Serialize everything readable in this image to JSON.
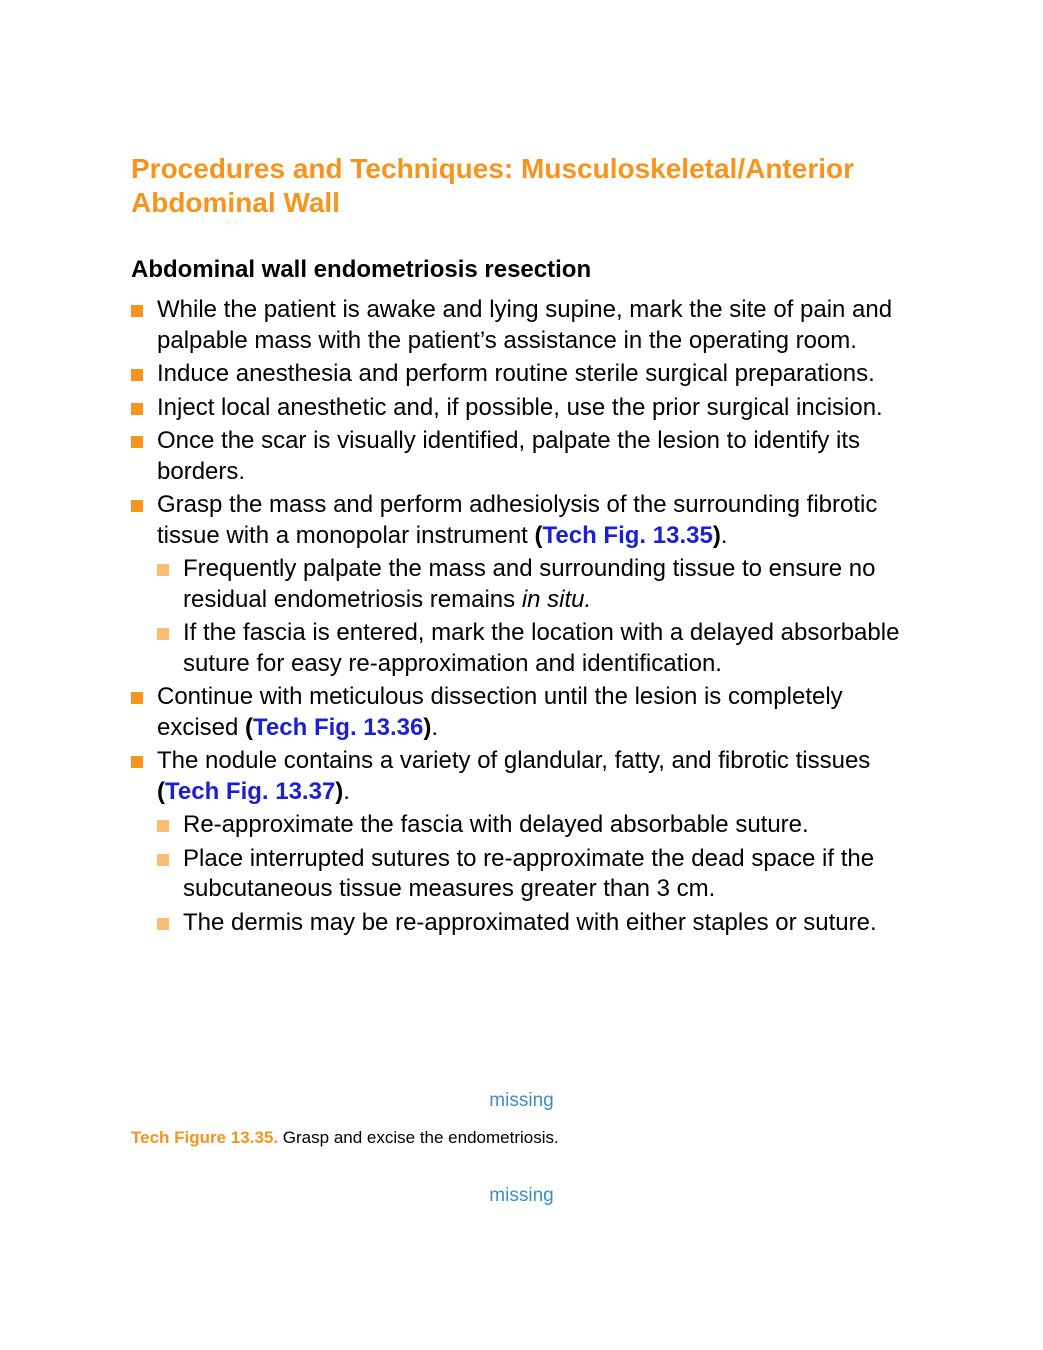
{
  "section_title": "Procedures and Techniques: Musculoskeletal/Anterior Abdominal Wall",
  "subsection_title": "Abdominal wall endometriosis resection",
  "bullets": [
    {
      "text": "While the patient is awake and lying supine, mark the site of pain and palpable mass with the patient’s assistance in the operating room."
    },
    {
      "text": "Induce anesthesia and perform routine sterile surgical preparations."
    },
    {
      "text": "Inject local anesthetic and, if possible, use the prior surgical incision."
    },
    {
      "text": "Once the scar is visually identified, palpate the lesion to identify its borders."
    },
    {
      "text_before": "Grasp the mass and perform adhesiolysis of the surrounding fibrotic tissue with a monopolar instrument ",
      "ref_open": "(",
      "ref_text": "Tech Fig. 13.35",
      "ref_close": ")",
      "text_after": ".",
      "sub": [
        {
          "text_before": "Frequently palpate the mass and surrounding tissue to ensure no residual endometriosis remains ",
          "italic": "in situ."
        },
        {
          "text": "If the fascia is entered, mark the location with a delayed absorbable suture for easy re-approximation and identification."
        }
      ]
    },
    {
      "text_before": "Continue with meticulous dissection until the lesion is completely excised ",
      "ref_open": "(",
      "ref_text": "Tech Fig. 13.36",
      "ref_close": ")",
      "text_after": "."
    },
    {
      "text_before": "The nodule contains a variety of glandular, fatty, and fibrotic tissues ",
      "ref_open": "(",
      "ref_text": "Tech Fig. 13.37",
      "ref_close": ")",
      "text_after": ".",
      "sub": [
        {
          "text": "Re-approximate the fascia with delayed absorbable suture."
        },
        {
          "text": "Place interrupted sutures to re-approximate the dead space if the subcutaneous tissue measures greater than 3 cm."
        },
        {
          "text": "The dermis may be re-approximated with either staples or suture."
        }
      ]
    }
  ],
  "figure_placeholder_1": "missing",
  "caption": {
    "label": "Tech Figure 13.35.",
    "text": " Grasp and excise the endometriosis."
  },
  "figure_placeholder_2": "missing",
  "colors": {
    "heading_orange": "#f7941d",
    "sub_bullet_orange": "#fbbd72",
    "link_blue": "#1a21d4",
    "missing_blue": "#3d8fbf"
  }
}
